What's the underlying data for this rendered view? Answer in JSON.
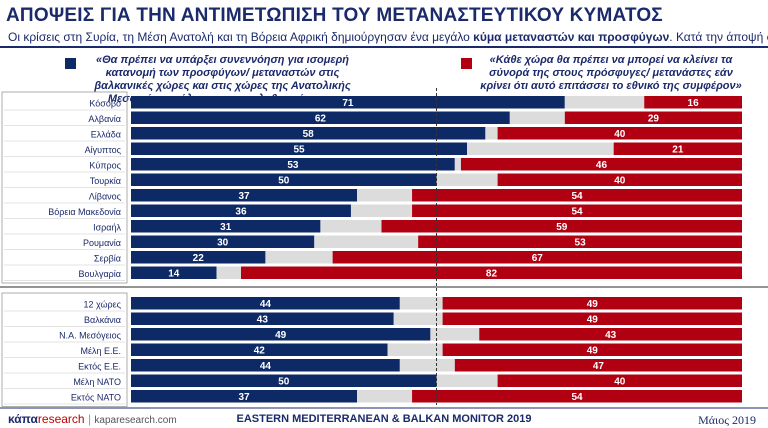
{
  "title": "ΑΠΟΨΕΙΣ ΓΙΑ ΤΗΝ ΑΝΤΙΜΕΤΩΠΙΣΗ ΤΟΥ ΜΕΤΑΝΑΣΤΕΥΤΙΚΟΥ ΚΥΜΑΤΟΣ",
  "subtitle_pre": "Οι κρίσεις στη Συρία, τη Μέση Ανατολή και τη Βόρεια Αφρική δημιούργησαν ένα μεγάλο ",
  "subtitle_bold": "κύμα μεταναστών και προσφύγων",
  "subtitle_post": ". Κατά την άποψή σας;",
  "colors": {
    "blue": "#0e2a66",
    "red": "#b00012",
    "gray": "#dcdcdc",
    "text": "#1b2a6b"
  },
  "footer": {
    "brand_k": "κάπα",
    "brand_r": "research",
    "brand_url": "kaparesearch.com",
    "center": "EASTERN MEDITERRANEAN & BALKAN MONITOR 2019",
    "date": "Μάιος 2019"
  },
  "chart_data": {
    "type": "bar",
    "stacked": true,
    "series": [
      {
        "name": "«Θα πρέπει να υπάρξει συνεννόηση για ισομερή κατανομή των προσφύγων/ μεταναστών στις βαλκανικές χώρες και στις χώρες της Ανατολικής Μεσογείου ανάλογα με τον πληθυσμό τους»",
        "color": "#0e2a66"
      },
      {
        "name": "«Κάθε χώρα θα πρέπει να μπορεί να κλείνει τα σύνορά της στους πρόσφυγες/ μετανάστες εάν κρίνει ότι αυτό επιτάσσει το εθνικό της συμφέρον»",
        "color": "#b00012"
      }
    ],
    "groups": [
      {
        "rows": [
          {
            "label": "Κόσοβο",
            "blue": 71,
            "red": 16
          },
          {
            "label": "Αλβανία",
            "blue": 62,
            "red": 29
          },
          {
            "label": "Ελλάδα",
            "blue": 58,
            "red": 40
          },
          {
            "label": "Αίγυπτος",
            "blue": 55,
            "red": 21
          },
          {
            "label": "Κύπρος",
            "blue": 53,
            "red": 46
          },
          {
            "label": "Τουρκία",
            "blue": 50,
            "red": 40
          },
          {
            "label": "Λίβανος",
            "blue": 37,
            "red": 54
          },
          {
            "label": "Βόρεια Μακεδονία",
            "blue": 36,
            "red": 54
          },
          {
            "label": "Ισραήλ",
            "blue": 31,
            "red": 59
          },
          {
            "label": "Ρουμανία",
            "blue": 30,
            "red": 53
          },
          {
            "label": "Σερβία",
            "blue": 22,
            "red": 67
          },
          {
            "label": "Βουλγαρία",
            "blue": 14,
            "red": 82
          }
        ]
      },
      {
        "rows": [
          {
            "label": "12 χώρες",
            "blue": 44,
            "red": 49
          },
          {
            "label": "Βαλκάνια",
            "blue": 43,
            "red": 49
          },
          {
            "label": "Ν.Α. Μεσόγειος",
            "blue": 49,
            "red": 43
          },
          {
            "label": "Μέλη Ε.Ε.",
            "blue": 42,
            "red": 49
          },
          {
            "label": "Εκτός Ε.Ε.",
            "blue": 44,
            "red": 47
          },
          {
            "label": "Μέλη ΝΑΤΟ",
            "blue": 50,
            "red": 40
          },
          {
            "label": "Εκτός ΝΑΤΟ",
            "blue": 37,
            "red": 54
          }
        ]
      }
    ],
    "xlim": [
      0,
      100
    ],
    "reference_line_at": 50
  }
}
